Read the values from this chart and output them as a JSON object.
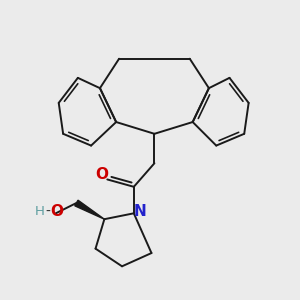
{
  "bg_color": "#ebebeb",
  "bond_color": "#1a1a1a",
  "bond_width": 1.4,
  "figsize": [
    3.0,
    3.0
  ],
  "dpi": 100,
  "xlim": [
    0,
    10
  ],
  "ylim": [
    0,
    10
  ]
}
